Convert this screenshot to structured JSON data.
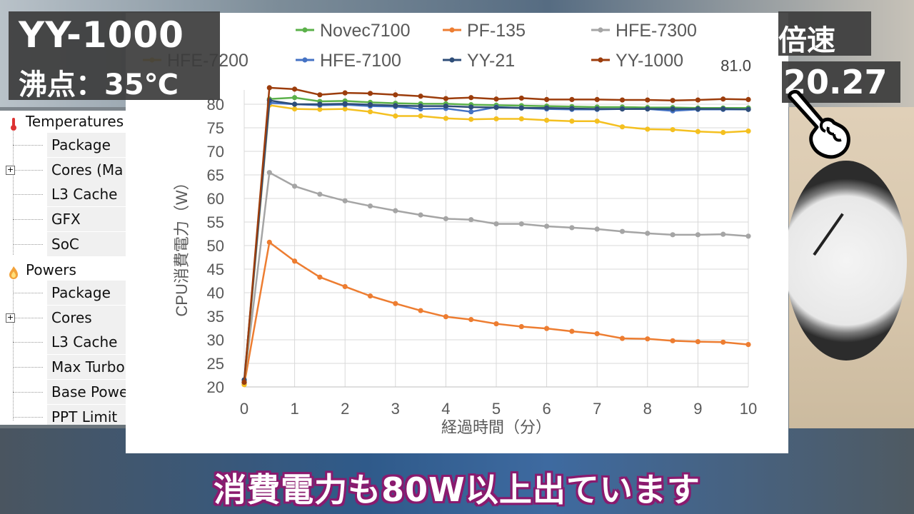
{
  "overlay": {
    "title_main": "YY-1000",
    "title_sub": "沸点：35℃",
    "speed_label": "倍速",
    "value_display": "20.27",
    "subtitle": "消費電力も80W以上出ています"
  },
  "tree": {
    "temperatures_label": "Temperatures",
    "temp_items": [
      "Package",
      "Cores (Ma",
      "L3 Cache",
      "GFX",
      "SoC"
    ],
    "powers_label": "Powers",
    "power_items": [
      "Package",
      "Cores",
      "L3 Cache",
      "Max Turbo",
      "Base Powe",
      "PPT Limit"
    ]
  },
  "chart_data": {
    "type": "line",
    "xlabel": "経過時間（分）",
    "ylabel": "CPU消費電力（W）",
    "xlim": [
      0,
      10
    ],
    "ylim": [
      20,
      80
    ],
    "x_ticks": [
      0,
      1,
      2,
      3,
      4,
      5,
      6,
      7,
      8,
      9,
      10
    ],
    "y_ticks": [
      20,
      25,
      30,
      35,
      40,
      45,
      50,
      55,
      60,
      65,
      70,
      75,
      80
    ],
    "grid": true,
    "legend_position": "top",
    "annotation": "81.0",
    "x": [
      0,
      0.5,
      1,
      1.5,
      2,
      2.5,
      3,
      3.5,
      4,
      4.5,
      5,
      5.5,
      6,
      6.5,
      7,
      7.5,
      8,
      8.5,
      9,
      9.5,
      10
    ],
    "series": [
      {
        "name": "Novec7100",
        "color": "#5bb14a",
        "values": [
          21,
          81.1,
          81.4,
          80.6,
          80.7,
          80.4,
          80.2,
          80.1,
          80.1,
          79.9,
          79.8,
          79.7,
          79.6,
          79.5,
          79.4,
          79.4,
          79.3,
          79.3,
          79.2,
          79.2,
          79.2
        ]
      },
      {
        "name": "PF-135",
        "color": "#ed7d31",
        "values": [
          20.5,
          50.7,
          46.7,
          43.3,
          41.3,
          39.3,
          37.7,
          36.2,
          34.9,
          34.3,
          33.4,
          32.8,
          32.4,
          31.8,
          31.3,
          30.3,
          30.2,
          29.8,
          29.6,
          29.5,
          29.0
        ]
      },
      {
        "name": "HFE-7300",
        "color": "#a5a5a5",
        "values": [
          21,
          65.5,
          62.6,
          60.9,
          59.5,
          58.4,
          57.4,
          56.5,
          55.7,
          55.5,
          54.6,
          54.6,
          54.1,
          53.8,
          53.5,
          53.0,
          52.6,
          52.3,
          52.3,
          52.4,
          52.0
        ]
      },
      {
        "name": "HFE-7200",
        "color": "#f4c020",
        "values": [
          20.5,
          79.8,
          79.0,
          78.9,
          79.0,
          78.4,
          77.5,
          77.5,
          77.0,
          76.8,
          76.9,
          76.9,
          76.6,
          76.4,
          76.4,
          75.2,
          74.7,
          74.6,
          74.2,
          74.0,
          74.3
        ]
      },
      {
        "name": "HFE-7100",
        "color": "#4472c4",
        "values": [
          21,
          80.3,
          80.0,
          79.8,
          79.9,
          79.6,
          79.5,
          79.0,
          79.1,
          78.4,
          79.4,
          79.2,
          79.0,
          78.9,
          78.9,
          79.0,
          79.0,
          78.6,
          78.9,
          78.9,
          78.9
        ]
      },
      {
        "name": "YY-21",
        "color": "#2e4d78",
        "values": [
          21.5,
          80.8,
          80.0,
          80.0,
          80.1,
          79.9,
          79.7,
          79.6,
          79.6,
          79.4,
          79.3,
          79.2,
          79.2,
          79.1,
          79.0,
          79.0,
          79.0,
          79.0,
          79.0,
          79.0,
          78.9
        ]
      },
      {
        "name": "YY-1000",
        "color": "#9c3d0c",
        "values": [
          21,
          83.5,
          83.2,
          82.0,
          82.4,
          82.3,
          82.0,
          81.7,
          81.2,
          81.4,
          81.1,
          81.3,
          81.0,
          81.0,
          81.0,
          80.9,
          80.9,
          80.8,
          80.9,
          81.1,
          81.0
        ]
      }
    ]
  }
}
